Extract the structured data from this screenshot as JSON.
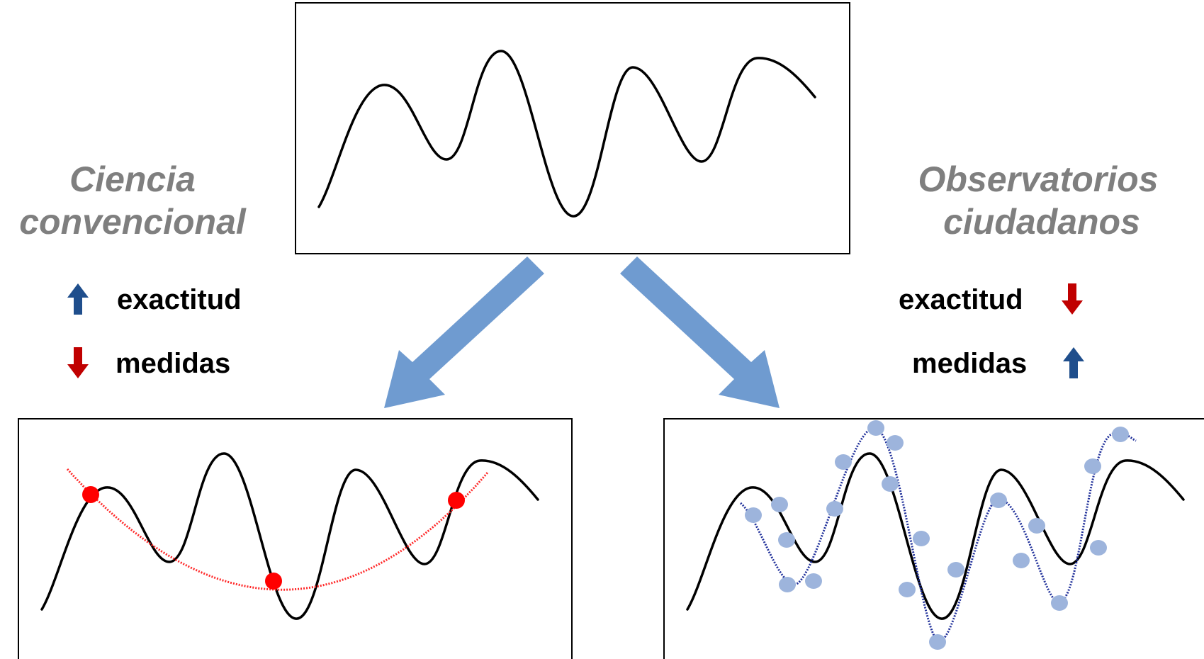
{
  "left": {
    "title_line1": "Ciencia",
    "title_line2": "convencional",
    "metric1": {
      "label": "exactitud",
      "direction": "up"
    },
    "metric2": {
      "label": "medidas",
      "direction": "down"
    }
  },
  "right": {
    "title_line1": "Observatorios",
    "title_line2": "ciudadanos",
    "metric1": {
      "label": "exactitud",
      "direction": "down"
    },
    "metric2": {
      "label": "medidas",
      "direction": "up"
    }
  },
  "colors": {
    "arrow_up": "#1f4e8c",
    "arrow_down": "#c00000",
    "big_arrow": "#6f9bd0",
    "red_points": "#ff0000",
    "blue_points": "#9db4dc",
    "title_grey": "#7f7f7f"
  }
}
